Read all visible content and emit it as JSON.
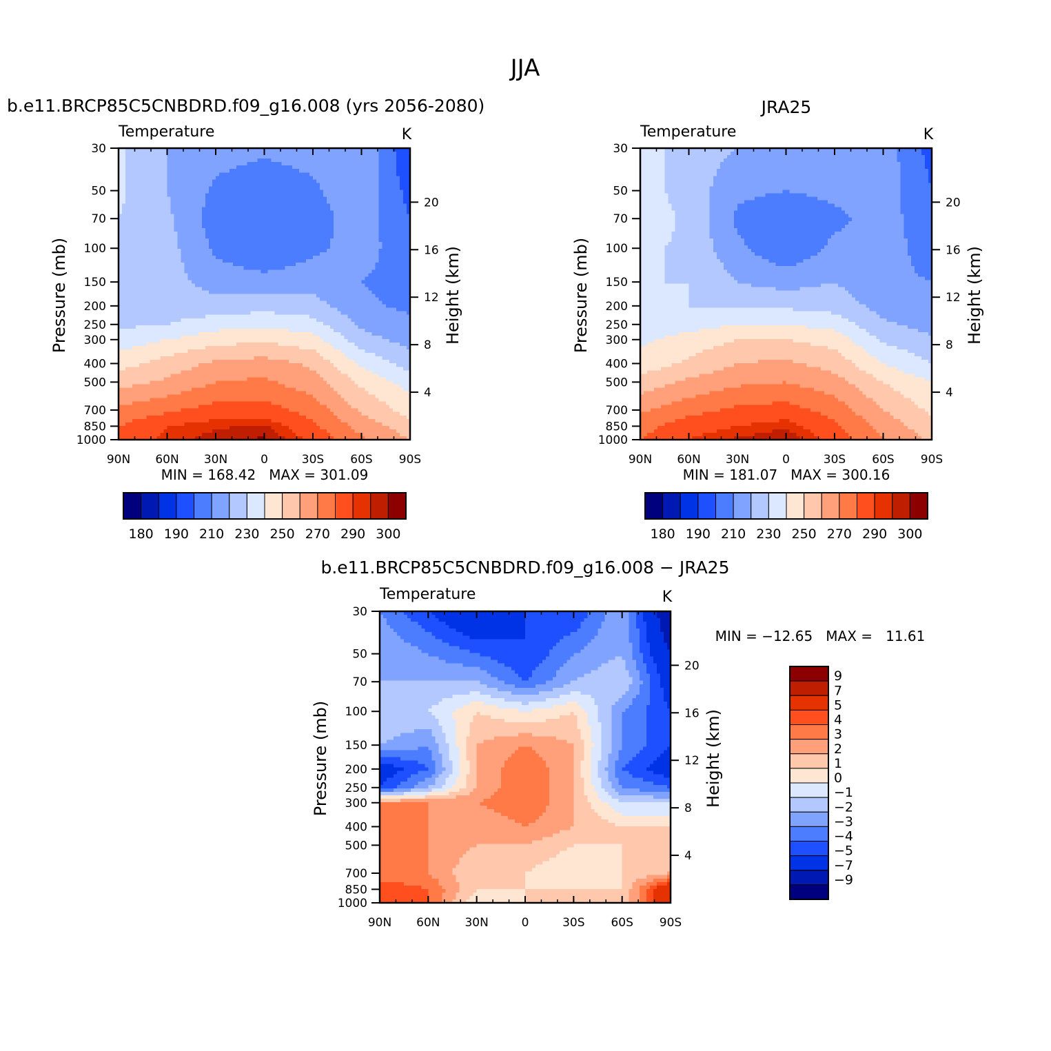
{
  "title": "JJA",
  "panel_left": {
    "title": "b.e11.BRCP85C5CNBDRD.f09_g16.008 (yrs 2056-2080)",
    "variable": "Temperature",
    "units": "K",
    "minmax": "MIN = 168.42   MAX = 301.09"
  },
  "panel_right": {
    "title": "JRA25",
    "variable": "Temperature",
    "units": "K",
    "minmax": "MIN = 181.07   MAX = 300.16"
  },
  "panel_diff": {
    "title": "b.e11.BRCP85C5CNBDRD.f09_g16.008 − JRA25",
    "variable": "Temperature",
    "units": "K",
    "minmax": "MIN = −12.65   MAX =   11.61"
  },
  "axes": {
    "ylabel": "Pressure (mb)",
    "ylabel_right": "Height (km)",
    "pressure_ticks": [
      "30",
      "50",
      "70",
      "100",
      "150",
      "200",
      "250",
      "300",
      "400",
      "500",
      "700",
      "850",
      "1000"
    ],
    "height_ticks": [
      "20",
      "16",
      "12",
      "8",
      "4"
    ],
    "lat_ticks": [
      "90N",
      "60N",
      "30N",
      "0",
      "30S",
      "60S",
      "90S"
    ]
  },
  "colorbar_abs": {
    "labels": [
      "180",
      "190",
      "210",
      "230",
      "250",
      "270",
      "290",
      "300"
    ],
    "colors": [
      "#00007f",
      "#0019b2",
      "#0033e5",
      "#1e50ff",
      "#4c7cff",
      "#7fa3ff",
      "#b2c8ff",
      "#dbe8ff",
      "#ffe6d2",
      "#ffc8ad",
      "#ffa07a",
      "#ff7a47",
      "#ff4f1e",
      "#e53200",
      "#bf1e00",
      "#8c0000"
    ]
  },
  "colorbar_diff": {
    "labels": [
      "9",
      "7",
      "5",
      "4",
      "3",
      "2",
      "1",
      "0",
      "−1",
      "−2",
      "−3",
      "−4",
      "−5",
      "−7",
      "−9"
    ],
    "colors": [
      "#8c0000",
      "#bf1e00",
      "#e53200",
      "#ff4f1e",
      "#ff7a47",
      "#ffa07a",
      "#ffc8ad",
      "#ffe6d2",
      "#dbe8ff",
      "#b2c8ff",
      "#7fa3ff",
      "#4c7cff",
      "#1e50ff",
      "#0033e5",
      "#0019b2",
      "#00007f"
    ]
  },
  "chart_data": [
    {
      "type": "heatmap",
      "title": "b.e11.BRCP85C5CNBDRD.f09_g16.008 (yrs 2056-2080)",
      "x": [
        "90N",
        "60N",
        "30N",
        "0",
        "30S",
        "60S",
        "90S"
      ],
      "y": [
        30,
        50,
        70,
        100,
        150,
        200,
        250,
        300,
        400,
        500,
        700,
        850,
        1000
      ],
      "values": [
        [
          232,
          220,
          214,
          212,
          214,
          220,
          190
        ],
        [
          232,
          220,
          208,
          204,
          208,
          218,
          196
        ],
        [
          230,
          222,
          205,
          200,
          205,
          216,
          200
        ],
        [
          228,
          224,
          208,
          200,
          208,
          214,
          204
        ],
        [
          226,
          224,
          216,
          214,
          216,
          210,
          206
        ],
        [
          224,
          224,
          224,
          226,
          224,
          212,
          208
        ],
        [
          228,
          230,
          236,
          238,
          234,
          218,
          212
        ],
        [
          234,
          240,
          246,
          248,
          244,
          224,
          216
        ],
        [
          246,
          254,
          262,
          264,
          258,
          238,
          226
        ],
        [
          256,
          262,
          270,
          272,
          264,
          248,
          236
        ],
        [
          272,
          278,
          284,
          284,
          276,
          258,
          246
        ],
        [
          280,
          290,
          294,
          296,
          282,
          266,
          254
        ],
        [
          284,
          292,
          298,
          301,
          288,
          272,
          260
        ]
      ]
    },
    {
      "type": "heatmap",
      "title": "JRA25",
      "x": [
        "90N",
        "60N",
        "30N",
        "0",
        "30S",
        "60S",
        "90S"
      ],
      "y": [
        30,
        50,
        70,
        100,
        150,
        200,
        250,
        300,
        400,
        500,
        700,
        850,
        1000
      ],
      "values": [
        [
          234,
          226,
          220,
          216,
          220,
          216,
          196
        ],
        [
          234,
          226,
          212,
          210,
          212,
          216,
          200
        ],
        [
          236,
          228,
          208,
          204,
          208,
          214,
          204
        ],
        [
          232,
          228,
          212,
          202,
          212,
          214,
          206
        ],
        [
          230,
          230,
          220,
          216,
          220,
          212,
          210
        ],
        [
          230,
          230,
          228,
          228,
          226,
          216,
          212
        ],
        [
          232,
          236,
          240,
          240,
          236,
          222,
          216
        ],
        [
          238,
          244,
          250,
          250,
          246,
          228,
          222
        ],
        [
          244,
          252,
          260,
          262,
          256,
          240,
          230
        ],
        [
          254,
          262,
          268,
          270,
          264,
          250,
          240
        ],
        [
          268,
          276,
          282,
          284,
          276,
          260,
          248
        ],
        [
          276,
          286,
          290,
          294,
          282,
          266,
          254
        ],
        [
          280,
          290,
          296,
          300,
          286,
          270,
          258
        ]
      ]
    },
    {
      "type": "heatmap",
      "title": "b.e11.BRCP85C5CNBDRD.f09_g16.008 − JRA25",
      "x": [
        "90N",
        "60N",
        "30N",
        "0",
        "30S",
        "60S",
        "90S"
      ],
      "y": [
        30,
        50,
        70,
        100,
        150,
        200,
        250,
        300,
        400,
        500,
        700,
        850,
        1000
      ],
      "values": [
        [
          -3,
          -5,
          -7,
          -5,
          -5,
          -2,
          -9
        ],
        [
          -2,
          -3,
          -4,
          -5,
          -3,
          -2,
          -7
        ],
        [
          -2,
          -2,
          -2,
          -4,
          -2,
          -1,
          -6
        ],
        [
          -1,
          -1,
          1,
          0,
          1,
          -3,
          -5
        ],
        [
          -2,
          -3,
          2,
          3,
          2,
          -3,
          -5
        ],
        [
          -6,
          -4,
          2,
          4,
          2,
          -4,
          -6
        ],
        [
          -5,
          -2,
          2,
          4,
          2,
          -3,
          -4
        ],
        [
          3,
          3,
          3,
          4,
          2,
          -1,
          -1
        ],
        [
          3,
          3,
          2,
          3,
          2,
          1,
          1
        ],
        [
          3,
          3,
          2,
          2,
          1,
          1,
          1
        ],
        [
          3,
          3,
          1,
          1,
          0,
          1,
          2
        ],
        [
          5,
          4,
          1,
          1,
          1,
          1,
          7
        ],
        [
          5,
          4,
          0,
          1,
          1,
          1,
          7
        ]
      ]
    }
  ]
}
